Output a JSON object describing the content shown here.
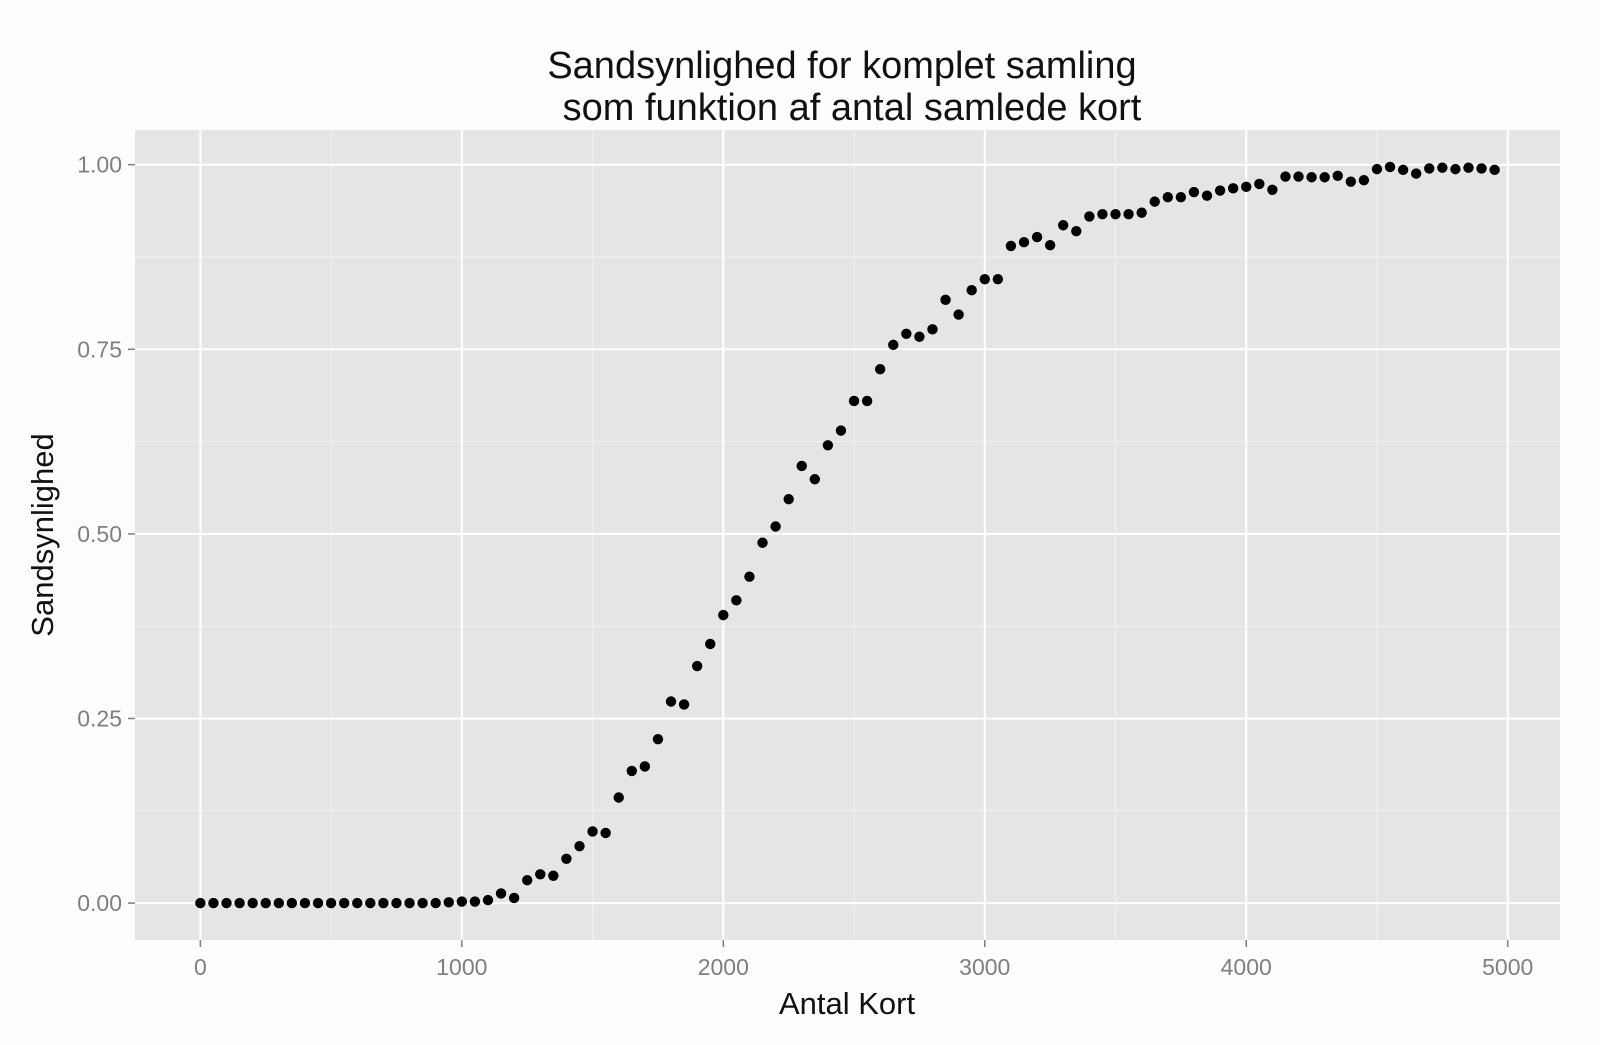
{
  "chart_data": {
    "type": "scatter",
    "title_lines": [
      "Sandsynlighed for komplet samling",
      "som funktion af antal samlede kort"
    ],
    "xlabel": "Antal Kort",
    "ylabel": "Sandsynlighed",
    "xlim": [
      -250,
      5200
    ],
    "ylim": [
      -0.05,
      1.047
    ],
    "x_ticks": [
      0,
      1000,
      2000,
      3000,
      4000,
      5000
    ],
    "x_tick_labels": [
      "0",
      "1000",
      "2000",
      "3000",
      "4000",
      "5000"
    ],
    "y_ticks": [
      0,
      0.25,
      0.5,
      0.75,
      1.0
    ],
    "y_tick_labels": [
      "0.00",
      "0.25",
      "0.50",
      "0.75",
      "1.00"
    ],
    "grid": true,
    "colors": {
      "panel_background": "#e5e5e5",
      "grid_major": "#ffffff",
      "grid_minor": "#f2f2f2",
      "point": "#000000"
    },
    "x": [
      0,
      50,
      100,
      150,
      200,
      250,
      300,
      350,
      400,
      450,
      500,
      550,
      600,
      650,
      700,
      750,
      800,
      850,
      900,
      950,
      1000,
      1050,
      1100,
      1150,
      1200,
      1250,
      1300,
      1350,
      1400,
      1450,
      1500,
      1550,
      1600,
      1650,
      1700,
      1750,
      1800,
      1850,
      1900,
      1950,
      2000,
      2050,
      2100,
      2150,
      2200,
      2250,
      2300,
      2350,
      2400,
      2450,
      2500,
      2550,
      2600,
      2650,
      2700,
      2750,
      2800,
      2850,
      2900,
      2950,
      3000,
      3050,
      3100,
      3150,
      3200,
      3250,
      3300,
      3350,
      3400,
      3450,
      3500,
      3550,
      3600,
      3650,
      3700,
      3750,
      3800,
      3850,
      3900,
      3950,
      4000,
      4050,
      4100,
      4150,
      4200,
      4250,
      4300,
      4350,
      4400,
      4450,
      4500,
      4550,
      4600,
      4650,
      4700,
      4750,
      4800,
      4850,
      4900,
      4950
    ],
    "y": [
      0,
      0,
      0,
      0,
      0,
      0,
      0,
      0,
      0,
      0,
      0,
      0,
      0,
      0,
      0,
      0,
      0,
      0,
      0,
      0.001,
      0.002,
      0.002,
      0.004,
      0.013,
      0.007,
      0.031,
      0.039,
      0.037,
      0.06,
      0.077,
      0.097,
      0.095,
      0.143,
      0.179,
      0.185,
      0.222,
      0.273,
      0.269,
      0.321,
      0.351,
      0.39,
      0.41,
      0.442,
      0.488,
      0.51,
      0.547,
      0.592,
      0.574,
      0.62,
      0.64,
      0.68,
      0.68,
      0.723,
      0.756,
      0.771,
      0.767,
      0.777,
      0.817,
      0.797,
      0.83,
      0.845,
      0.845,
      0.89,
      0.895,
      0.902,
      0.891,
      0.918,
      0.91,
      0.93,
      0.933,
      0.933,
      0.933,
      0.935,
      0.95,
      0.956,
      0.956,
      0.963,
      0.958,
      0.965,
      0.968,
      0.97,
      0.974,
      0.966,
      0.984,
      0.984,
      0.983,
      0.983,
      0.985,
      0.977,
      0.979,
      0.994,
      0.997,
      0.993,
      0.988,
      0.995,
      0.996,
      0.994,
      0.996,
      0.995,
      0.993
    ]
  }
}
